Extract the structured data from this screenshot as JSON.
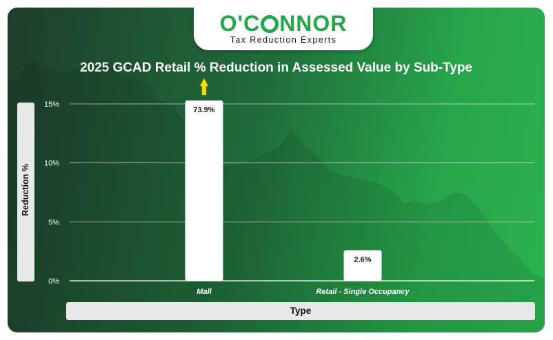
{
  "brand": {
    "name": "O'CONNOR",
    "tagline": "Tax Reduction Experts"
  },
  "colors": {
    "brand_green": "#22a64a",
    "bar_fill": "#ffffff",
    "arrow": "#f2e600",
    "grid": "#ffffff"
  },
  "chart_data": {
    "type": "bar",
    "title": "2025 GCAD Retail % Reduction in Assessed Value by Sub-Type",
    "xlabel": "Type",
    "ylabel": "Reduction %",
    "categories": [
      "Mall",
      "Retail - Single Occupancy"
    ],
    "values": [
      73.9,
      2.6
    ],
    "data_labels": [
      "73.9%",
      "2.6%"
    ],
    "y_ticks": [
      "0%",
      "5%",
      "10%",
      "15%"
    ],
    "ylim": [
      0,
      15
    ],
    "grid": true,
    "legend": "none",
    "clipped_indicator": "up-arrow-icon"
  }
}
